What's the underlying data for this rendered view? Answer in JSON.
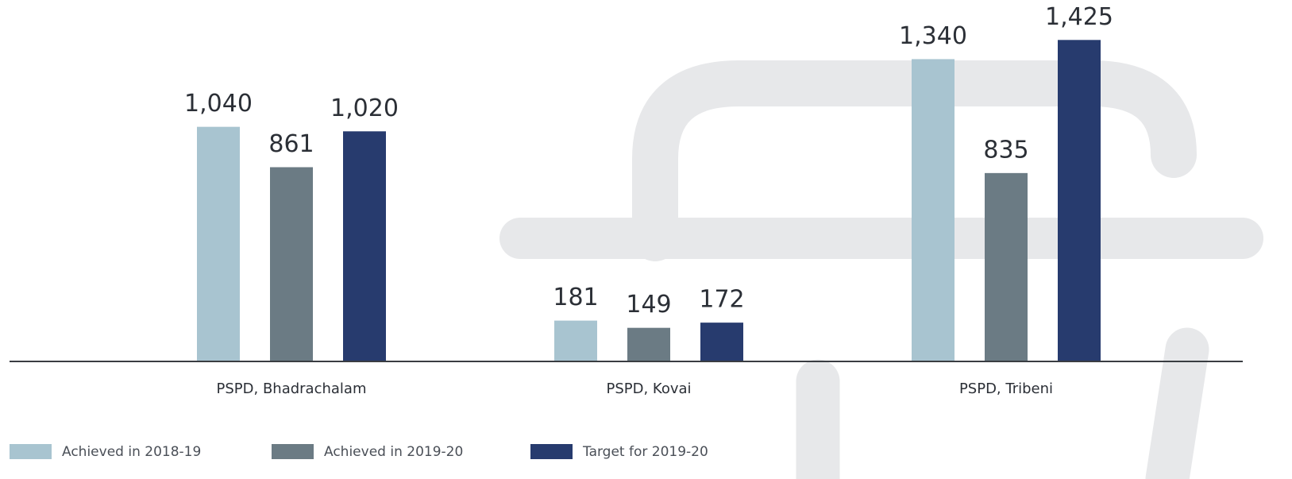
{
  "chart_data": {
    "type": "bar",
    "categories": [
      "PSPD, Bhadrachalam",
      "PSPD, Kovai",
      "PSPD, Tribeni"
    ],
    "series": [
      {
        "name": "Achieved in 2018-19",
        "color": "#a8c4d0",
        "values": [
          1040,
          181,
          1340
        ],
        "value_labels": [
          "1,040",
          "181",
          "1,340"
        ]
      },
      {
        "name": "Achieved in 2019-20",
        "color": "#6b7b84",
        "values": [
          861,
          149,
          835
        ],
        "value_labels": [
          "861",
          "149",
          "835"
        ]
      },
      {
        "name": "Target for 2019-20",
        "color": "#273b6e",
        "values": [
          1020,
          172,
          1425
        ],
        "value_labels": [
          "1,020",
          "172",
          "1,425"
        ]
      }
    ],
    "ylim": [
      0,
      1500
    ]
  }
}
